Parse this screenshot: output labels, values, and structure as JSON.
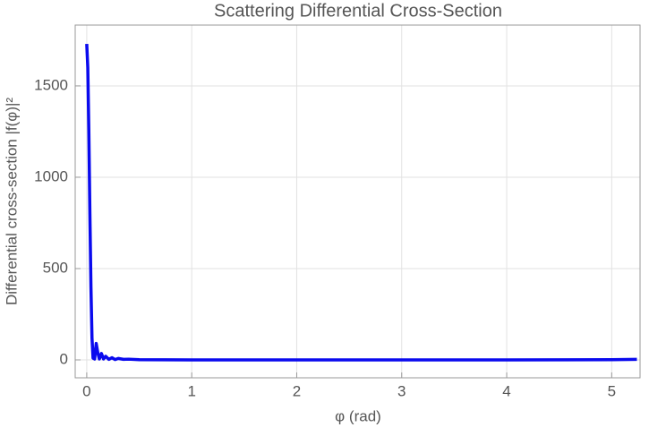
{
  "chart_data": {
    "type": "line",
    "title": "Scattering Differential Cross-Section",
    "x_label": "φ (rad)",
    "y_label": "Differential cross-section |f(φ)|²",
    "x": [
      0,
      0.01,
      0.02,
      0.03,
      0.04,
      0.05,
      0.06,
      0.075,
      0.09,
      0.105,
      0.12,
      0.14,
      0.16,
      0.18,
      0.21,
      0.24,
      0.27,
      0.3,
      0.35,
      0.4,
      0.5,
      1,
      2,
      3,
      4,
      5,
      5.24
    ],
    "series": [
      {
        "name": "|f(φ)|²",
        "color": "#0a0aee",
        "values": [
          1730,
          1600,
          1250,
          800,
          400,
          120,
          10,
          5,
          90,
          40,
          5,
          35,
          5,
          20,
          3,
          12,
          2,
          8,
          3,
          4,
          1,
          0,
          0,
          0,
          0,
          1,
          3
        ]
      }
    ],
    "xlim": [
      -0.11,
      5.27
    ],
    "ylim": [
      -98,
      1833
    ],
    "xticks": [
      0,
      1,
      2,
      3,
      4,
      5
    ],
    "yticks": [
      0,
      500,
      1000,
      1500
    ],
    "grid": true
  }
}
